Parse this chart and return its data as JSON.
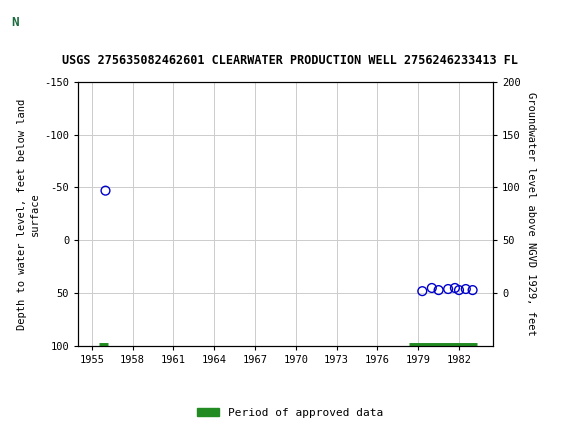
{
  "title": "USGS 275635082462601 CLEARWATER PRODUCTION WELL 2756246233413 FL",
  "header_color": "#1a6b3c",
  "ylabel_left": "Depth to water level, feet below land\nsurface",
  "ylabel_right": "Groundwater level above NGVD 1929, feet",
  "ylim_left": [
    100,
    -150
  ],
  "ylim_right": [
    -50,
    200
  ],
  "xlim": [
    1954.0,
    1984.5
  ],
  "yticks_left": [
    -150,
    -100,
    -50,
    0,
    50,
    100
  ],
  "yticks_right": [
    0,
    50,
    100,
    150,
    200
  ],
  "xticks": [
    1955,
    1958,
    1961,
    1964,
    1967,
    1970,
    1973,
    1976,
    1979,
    1982
  ],
  "grid_color": "#cccccc",
  "background_color": "#ffffff",
  "scatter_x": [
    1956.0,
    1979.3,
    1980.0,
    1980.5,
    1981.2,
    1981.7,
    1982.0,
    1982.5,
    1983.0
  ],
  "scatter_y": [
    -47,
    48,
    45,
    47,
    46,
    45,
    47,
    46,
    47
  ],
  "scatter_color": "#0000cc",
  "scatter_size": 40,
  "approved_segments": [
    {
      "x_start": 1955.5,
      "x_end": 1956.2
    },
    {
      "x_start": 1978.3,
      "x_end": 1983.3
    }
  ],
  "approved_color": "#228B22",
  "approved_y": 100,
  "legend_label": "Period of approved data",
  "font_family": "monospace",
  "title_fontsize": 8.5,
  "tick_fontsize": 7.5,
  "ylabel_fontsize": 7.5
}
